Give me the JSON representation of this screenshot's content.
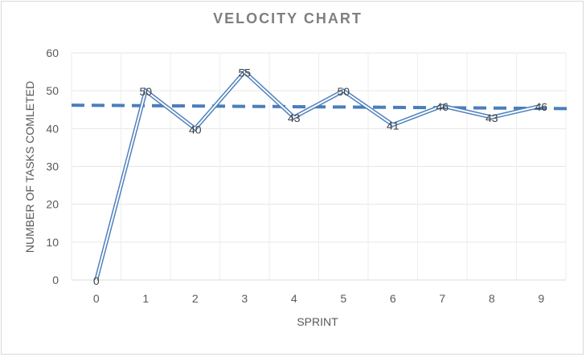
{
  "chart_data": {
    "type": "line",
    "title": "VELOCITY CHART",
    "xlabel": "SPRINT",
    "ylabel": "NUMBER OF TASKS COMLETED",
    "categories": [
      "0",
      "1",
      "2",
      "3",
      "4",
      "5",
      "6",
      "7",
      "8",
      "9"
    ],
    "ylim": [
      0,
      60
    ],
    "yticks": [
      "0",
      "10",
      "20",
      "30",
      "40",
      "50",
      "60"
    ],
    "grid": true,
    "legend": "none",
    "series": [
      {
        "values": [
          0,
          50,
          40,
          55,
          43,
          50,
          41,
          46,
          43,
          46
        ],
        "style": "double-line",
        "color": "#4f81bd",
        "data_labels": [
          "0",
          "50",
          "40",
          "55",
          "43",
          "50",
          "41",
          "46",
          "43",
          "46"
        ]
      }
    ],
    "trendline": {
      "style": "dashed",
      "color": "#4a7ebb",
      "y_start": 46.2,
      "y_end": 45.3
    }
  }
}
